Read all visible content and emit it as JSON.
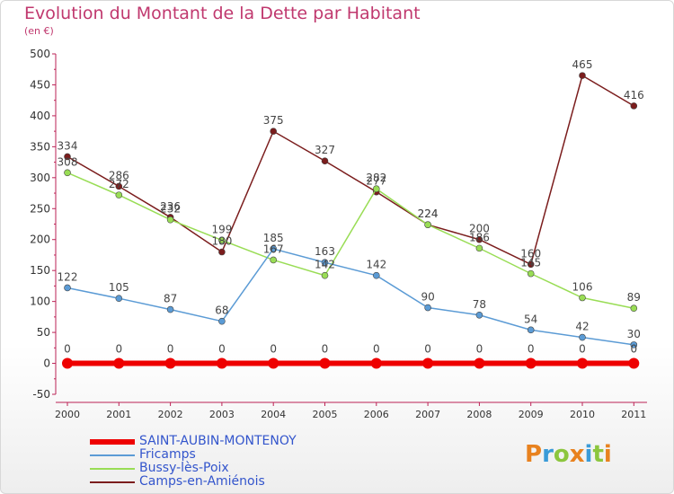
{
  "title": "Evolution du Montant de la Dette par Habitant",
  "unit": "(en €)",
  "logo": "Proxiti",
  "colors": {
    "title": "#c0386e",
    "axis_text": "#333333",
    "legend_text": "#3355cc",
    "logo_letters": [
      "#e8821f",
      "#3a9bd8",
      "#8cc63e",
      "#e8821f",
      "#3a9bd8",
      "#8cc63e",
      "#e8821f"
    ]
  },
  "chart_data": {
    "type": "line",
    "title": "Evolution du Montant de la Dette par Habitant",
    "ylabel": "(en €)",
    "xlabel": "",
    "x": [
      "2000",
      "2001",
      "2002",
      "2003",
      "2004",
      "2005",
      "2006",
      "2007",
      "2008",
      "2009",
      "2010",
      "2011"
    ],
    "ylim": [
      -50,
      500
    ],
    "yticks": [
      "-50",
      "0",
      "50",
      "100",
      "150",
      "200",
      "250",
      "300",
      "350",
      "400",
      "450",
      "500"
    ],
    "grid": false,
    "legend_position": "bottom-left",
    "series": [
      {
        "name": "SAINT-AUBIN-MONTENOY",
        "color": "#ee0000",
        "values": [
          0,
          0,
          0,
          0,
          0,
          0,
          0,
          0,
          0,
          0,
          0,
          0
        ]
      },
      {
        "name": "Fricamps",
        "color": "#5b9bd5",
        "values": [
          122,
          105,
          87,
          68,
          185,
          163,
          142,
          90,
          78,
          54,
          42,
          30
        ]
      },
      {
        "name": "Bussy-lès-Poix",
        "color": "#99dd55",
        "values": [
          308,
          272,
          232,
          199,
          167,
          142,
          282,
          224,
          186,
          145,
          106,
          89
        ]
      },
      {
        "name": "Camps-en-Amiénois",
        "color": "#7b1d1d",
        "values": [
          334,
          286,
          236,
          180,
          375,
          327,
          277,
          224,
          200,
          160,
          465,
          416
        ]
      }
    ]
  }
}
